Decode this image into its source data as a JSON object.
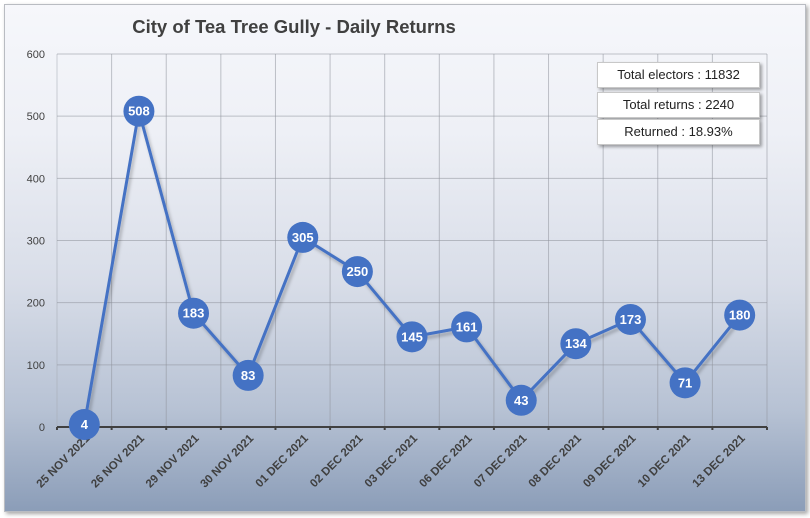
{
  "chart_data": {
    "type": "line",
    "title": "City of Tea Tree Gully - Daily Returns",
    "xlabel": "",
    "ylabel": "",
    "ylim": [
      0,
      600
    ],
    "yticks": [
      0,
      100,
      200,
      300,
      400,
      500,
      600
    ],
    "grid": true,
    "legend": null,
    "categories": [
      "25 NOV 2021",
      "26 NOV 2021",
      "29 NOV 2021",
      "30 NOV 2021",
      "01 DEC 2021",
      "02 DEC 2021",
      "03 DEC 2021",
      "06 DEC 2021",
      "07 DEC 2021",
      "08 DEC 2021",
      "09 DEC 2021",
      "10 DEC 2021",
      "13 DEC 2021"
    ],
    "series": [
      {
        "name": "Daily Returns",
        "values": [
          4,
          508,
          183,
          83,
          305,
          250,
          145,
          161,
          43,
          134,
          173,
          71,
          180
        ]
      }
    ],
    "annotations": [
      "Total electors : 11832",
      "Total returns : 2240",
      "Returned : 18.93%"
    ]
  },
  "title": "City of Tea Tree Gully - Daily Returns",
  "info": {
    "electors": "Total electors : 11832",
    "returns": "Total returns : 2240",
    "returned": "Returned : 18.93%"
  },
  "colors": {
    "series": "#4472c4",
    "label": "#ffffff",
    "axis_text": "#404040"
  }
}
